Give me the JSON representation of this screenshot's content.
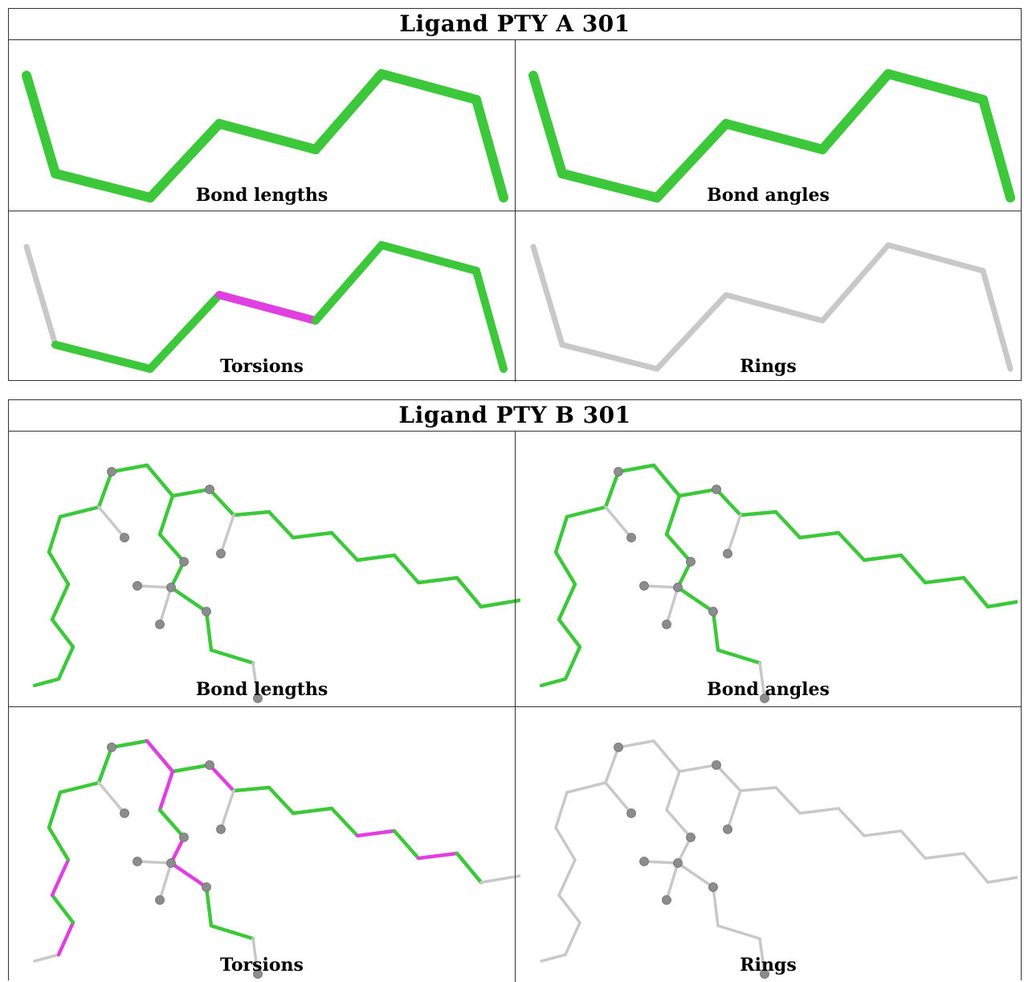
{
  "ligands": [
    {
      "title": "Ligand PTY A 301",
      "panels": [
        {
          "caption": "Bond lengths",
          "segments": [
            "green",
            "green",
            "green",
            "green",
            "green",
            "green",
            "green",
            "green"
          ]
        },
        {
          "caption": "Bond angles",
          "segments": [
            "green",
            "green",
            "green",
            "green",
            "green",
            "green",
            "green",
            "green"
          ]
        },
        {
          "caption": "Torsions",
          "segments": [
            "gray",
            "green",
            "green",
            "magenta",
            "green",
            "green",
            "green",
            "gray"
          ]
        },
        {
          "caption": "Rings",
          "segments": [
            "gray",
            "gray",
            "gray",
            "gray",
            "gray",
            "gray",
            "gray",
            "gray"
          ]
        }
      ]
    },
    {
      "title": "Ligand PTY B 301",
      "panels": [
        {
          "caption": "Bond lengths",
          "scheme": "validated"
        },
        {
          "caption": "Bond angles",
          "scheme": "validated"
        },
        {
          "caption": "Torsions",
          "scheme": "torsion"
        },
        {
          "caption": "Rings",
          "scheme": "none"
        }
      ]
    }
  ],
  "colors": {
    "green": "#3cc83a",
    "green_dark": "#24a022",
    "magenta": "#e040e0",
    "gray": "#c8c8c8",
    "atom": "#8c8c8c"
  }
}
